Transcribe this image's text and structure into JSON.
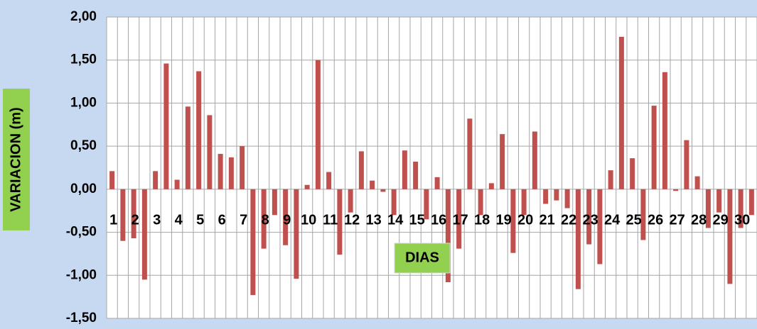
{
  "chart_data": {
    "type": "bar",
    "x_label": "DIAS",
    "y_label": "VARIACION (m)",
    "categories": [
      "1",
      null,
      "2",
      null,
      "3",
      null,
      "4",
      null,
      "5",
      null,
      "6",
      null,
      "7",
      null,
      "8",
      null,
      "9",
      null,
      "10",
      null,
      "11",
      null,
      "12",
      null,
      "13",
      null,
      "14",
      null,
      "15",
      null,
      "16",
      null,
      "17",
      null,
      "18",
      null,
      "19",
      null,
      "20",
      null,
      "21",
      null,
      "22",
      null,
      "23",
      null,
      "24",
      null,
      "25",
      null,
      "26",
      null,
      "27",
      null,
      "28",
      null,
      "29",
      null,
      "30",
      null
    ],
    "values": [
      0.21,
      -0.6,
      -0.57,
      -1.05,
      0.21,
      1.46,
      0.11,
      0.96,
      1.37,
      0.86,
      0.41,
      0.37,
      0.5,
      -1.23,
      -0.69,
      -0.3,
      -0.65,
      -1.04,
      0.05,
      1.5,
      0.2,
      -0.76,
      -0.27,
      0.44,
      0.1,
      -0.03,
      -0.3,
      0.45,
      0.32,
      -0.35,
      0.14,
      -1.08,
      -0.69,
      0.82,
      -0.3,
      0.07,
      0.64,
      -0.74,
      -0.3,
      0.67,
      -0.17,
      -0.13,
      -0.22,
      -1.16,
      -0.64,
      -0.87,
      0.22,
      1.77,
      0.36,
      -0.59,
      0.97,
      1.36,
      -0.02,
      0.57,
      0.15,
      -0.45,
      -0.27,
      -1.1,
      -0.45,
      -0.3
    ],
    "color": "#c0504d",
    "ylim": [
      -1.5,
      2.0
    ],
    "yticks": [
      {
        "value": -1.5,
        "label": "-1,50"
      },
      {
        "value": -1.0,
        "label": "-1,00"
      },
      {
        "value": -0.5,
        "label": "-0,50"
      },
      {
        "value": 0,
        "label": "0,00"
      },
      {
        "value": 0.5,
        "label": "0,50"
      },
      {
        "value": 1.0,
        "label": "1,00"
      },
      {
        "value": 1.5,
        "label": "1,50"
      },
      {
        "value": 2.0,
        "label": "2,00"
      }
    ],
    "grid": true
  }
}
